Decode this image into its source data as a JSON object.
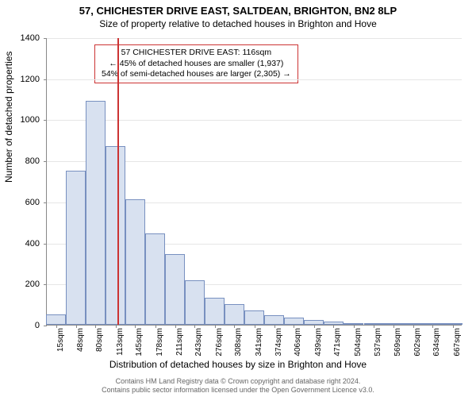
{
  "title": "57, CHICHESTER DRIVE EAST, SALTDEAN, BRIGHTON, BN2 8LP",
  "subtitle": "Size of property relative to detached houses in Brighton and Hove",
  "ylabel": "Number of detached properties",
  "xlabel": "Distribution of detached houses by size in Brighton and Hove",
  "annotation": {
    "line1": "57 CHICHESTER DRIVE EAST: 116sqm",
    "line2": "← 45% of detached houses are smaller (1,937)",
    "line3": "54% of semi-detached houses are larger (2,305) →",
    "border_color": "#cc3333"
  },
  "chart": {
    "type": "histogram",
    "ylim": [
      0,
      1400
    ],
    "ytick_step": 200,
    "yticks": [
      0,
      200,
      400,
      600,
      800,
      1000,
      1200,
      1400
    ],
    "xticks": [
      "15sqm",
      "48sqm",
      "80sqm",
      "113sqm",
      "145sqm",
      "178sqm",
      "211sqm",
      "243sqm",
      "276sqm",
      "308sqm",
      "341sqm",
      "374sqm",
      "406sqm",
      "439sqm",
      "471sqm",
      "504sqm",
      "537sqm",
      "569sqm",
      "602sqm",
      "634sqm",
      "667sqm"
    ],
    "bars": [
      50,
      750,
      1090,
      870,
      610,
      445,
      345,
      215,
      130,
      100,
      70,
      45,
      35,
      25,
      15,
      8,
      5,
      5,
      4,
      3,
      2
    ],
    "bar_fill": "#d8e1f0",
    "bar_stroke": "#7890c0",
    "marker_value": 116,
    "marker_color": "#cc3333",
    "x_min": 0,
    "x_max": 683,
    "bar_width_sqm": 32.5,
    "background_color": "#ffffff",
    "grid_color": "#e6e6e6",
    "axis_color": "#888888",
    "label_fontsize": 12,
    "tick_fontsize": 11,
    "title_fontsize": 13
  },
  "footer": {
    "line1": "Contains HM Land Registry data © Crown copyright and database right 2024.",
    "line2": "Contains public sector information licensed under the Open Government Licence v3.0."
  }
}
